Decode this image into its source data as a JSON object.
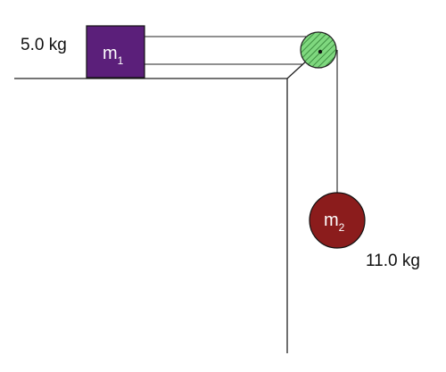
{
  "block": {
    "symbol": "m",
    "subscript": "1",
    "mass_label": "5.0 kg",
    "color": "#5b1f7a"
  },
  "hanging_mass": {
    "symbol": "m",
    "subscript": "2",
    "mass_label": "11.0 kg",
    "color": "#8b1c1c"
  },
  "pulley": {
    "color": "#6fcf6f"
  }
}
